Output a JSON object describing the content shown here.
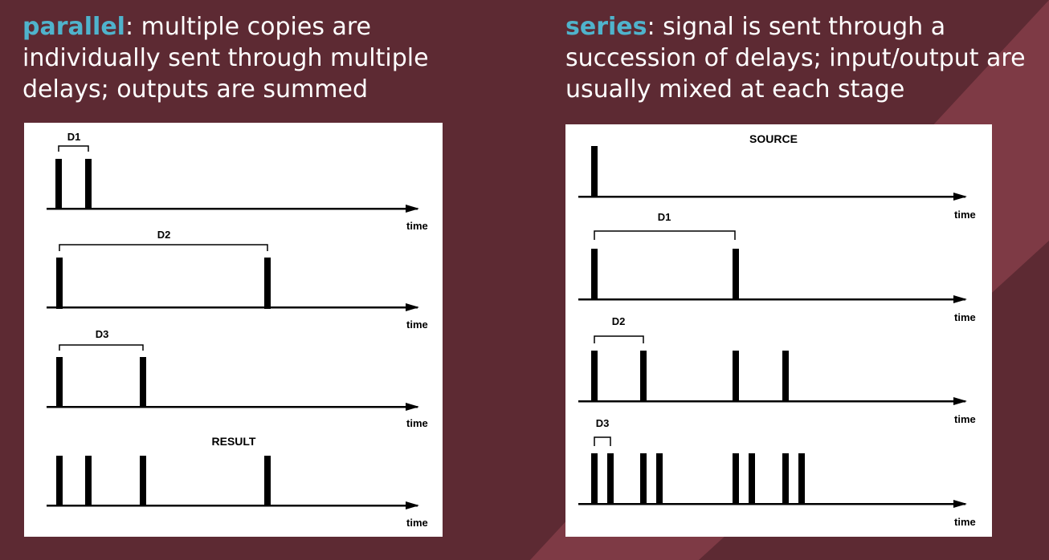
{
  "colors": {
    "background": "#5d2a33",
    "accent_stripe": "#7e3a45",
    "keyword": "#4fb3cc",
    "text": "#ffffff",
    "panel": "#ffffff",
    "ink": "#000000"
  },
  "left": {
    "keyword": "parallel",
    "description": ": multiple copies are individually sent through multiple delays; outputs are summed",
    "diagram": {
      "rows": [
        {
          "label": "D1",
          "axis_label": "time"
        },
        {
          "label": "D2",
          "axis_label": "time"
        },
        {
          "label": "D3",
          "axis_label": "time"
        },
        {
          "label": "RESULT",
          "axis_label": "time"
        }
      ]
    }
  },
  "right": {
    "keyword": "series",
    "description": ": signal is sent through a succession of delays; input/output are usually mixed at each stage",
    "diagram": {
      "rows": [
        {
          "label": "SOURCE",
          "axis_label": "time"
        },
        {
          "label": "D1",
          "axis_label": "time"
        },
        {
          "label": "D2",
          "axis_label": "time"
        },
        {
          "label": "D3",
          "axis_label": "time"
        }
      ]
    }
  }
}
